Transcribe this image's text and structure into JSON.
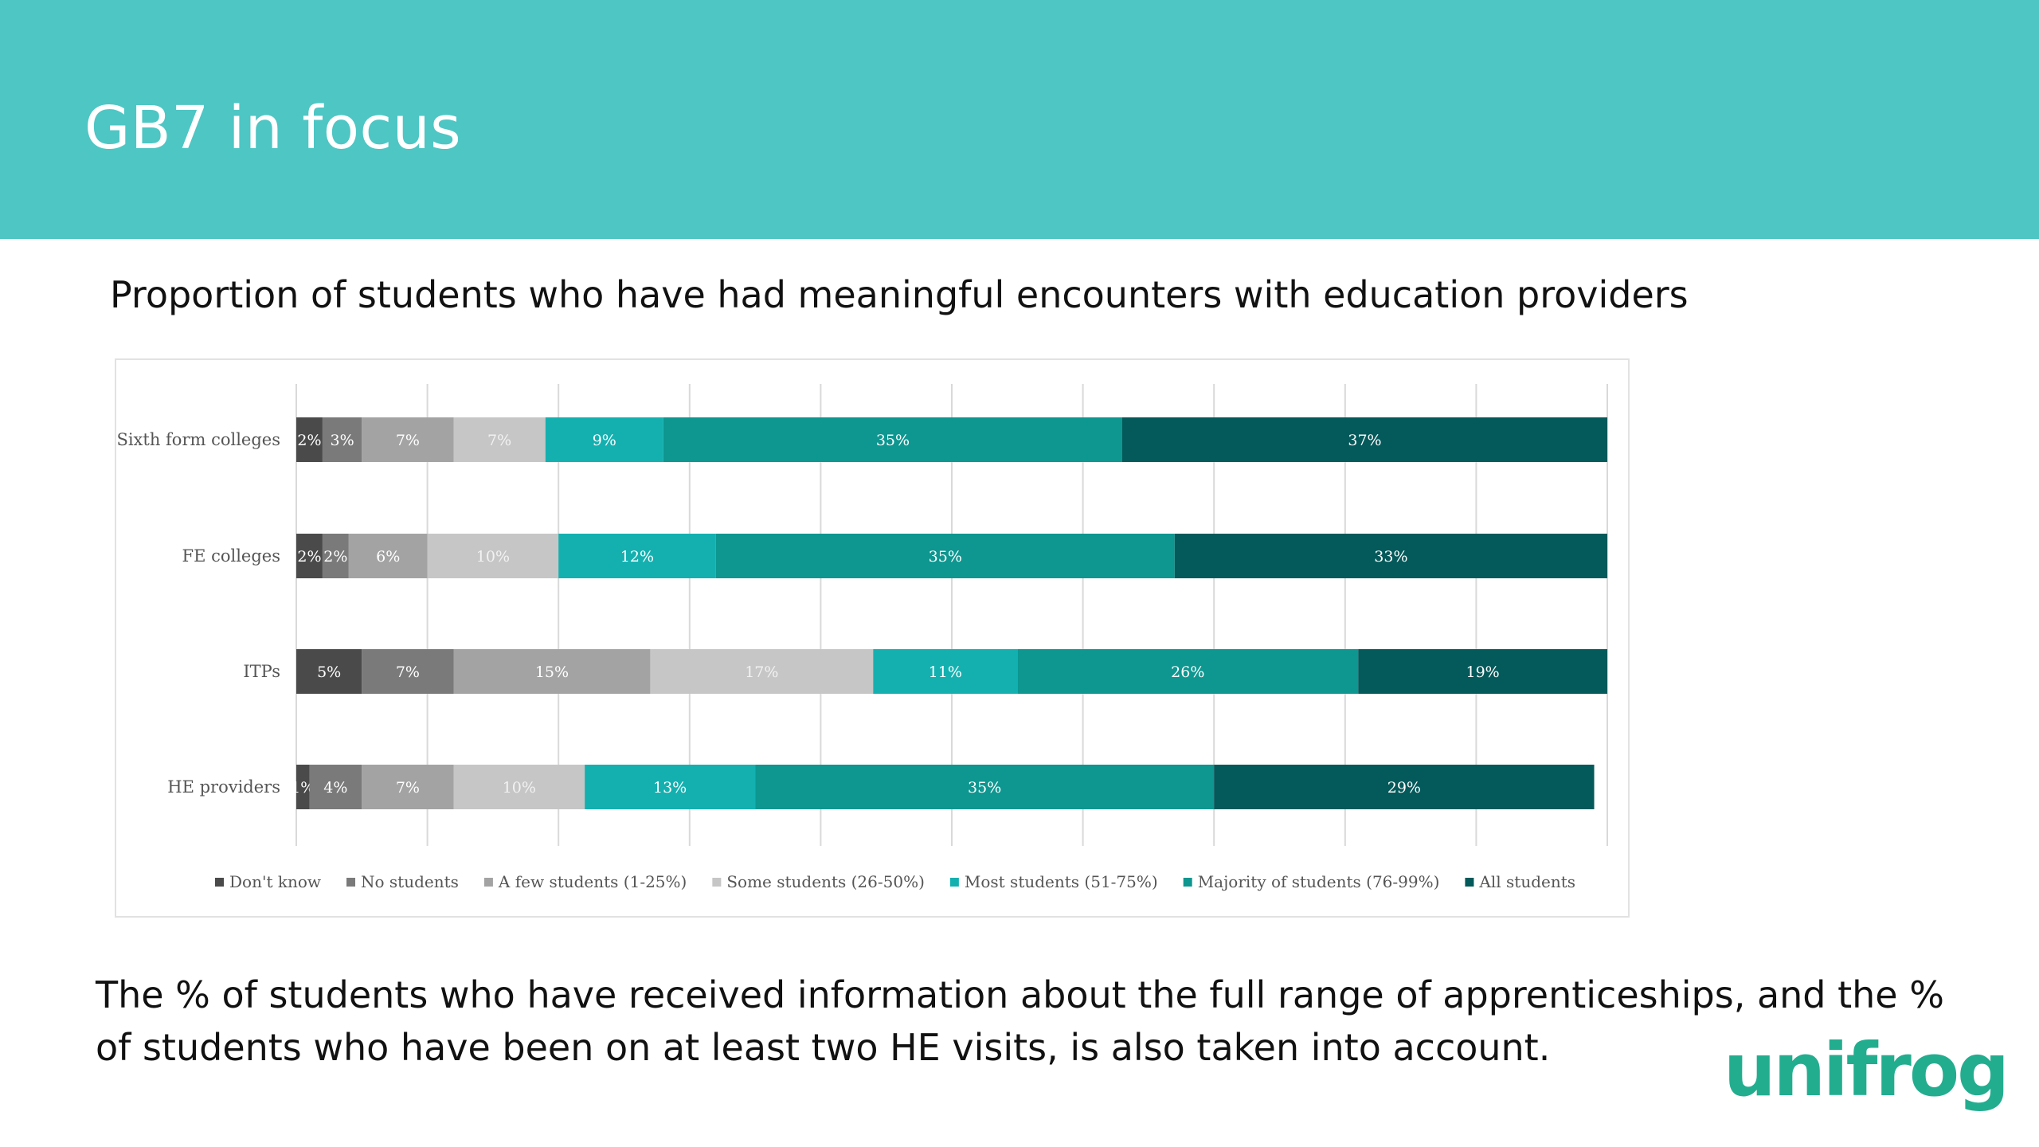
{
  "header": {
    "title": "GB7 in focus"
  },
  "chart_title": "Proportion of students who have had meaningful encounters with education providers",
  "footnote": "The % of students who have received information about the full range of apprenticeships, and the % of students who have been on at least two HE visits, is also taken into account.",
  "logo": {
    "text": "unifrog"
  },
  "colors": {
    "header_bg": "#4dc6c4",
    "logo": "#23ad8f"
  },
  "chart_data": {
    "type": "bar",
    "orientation": "horizontal",
    "stacked": true,
    "normalized": true,
    "xlim": [
      0,
      100
    ],
    "grid": true,
    "legend_placement": "bottom",
    "categories": [
      "Sixth form colleges",
      "FE colleges",
      "ITPs",
      "HE providers"
    ],
    "series": [
      {
        "name": "Don't know",
        "color": "#4a4a4a",
        "values": [
          2,
          2,
          5,
          1
        ],
        "labels": [
          "2%",
          "2%",
          "5%",
          "1%"
        ]
      },
      {
        "name": "No students",
        "color": "#7a7a7a",
        "values": [
          3,
          2,
          7,
          4
        ],
        "labels": [
          "3%",
          "2%",
          "7%",
          "4%"
        ]
      },
      {
        "name": "A few students (1-25%)",
        "color": "#a3a3a3",
        "values": [
          7,
          6,
          15,
          7
        ],
        "labels": [
          "7%",
          "6%",
          "15%",
          "7%"
        ]
      },
      {
        "name": "Some students (26-50%)",
        "color": "#c6c6c6",
        "values": [
          7,
          10,
          17,
          10
        ],
        "labels": [
          "7%",
          "10%",
          "17%",
          "10%"
        ]
      },
      {
        "name": "Most students (51-75%)",
        "color": "#14b0b0",
        "values": [
          9,
          12,
          11,
          13
        ],
        "labels": [
          "9%",
          "12%",
          "11%",
          "13%"
        ]
      },
      {
        "name": "Majority of students (76-99%)",
        "color": "#0e9690",
        "values": [
          35,
          35,
          26,
          35
        ],
        "labels": [
          "35%",
          "35%",
          "26%",
          "35%"
        ]
      },
      {
        "name": "All students",
        "color": "#04595a",
        "values": [
          37,
          33,
          19,
          29
        ],
        "labels": [
          "37%",
          "33%",
          "19%",
          "29%"
        ]
      }
    ]
  }
}
